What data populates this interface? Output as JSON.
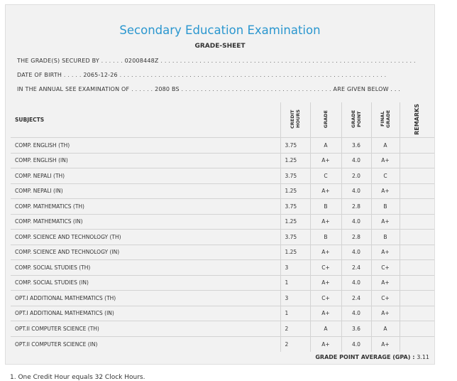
{
  "header": {
    "title": "Secondary Education Examination",
    "subtitle": "GRADE-SHEET"
  },
  "info": {
    "grade_label": "THE GRADE(S) SECURED BY",
    "grade_dots": ". . . . . .",
    "symbol_no": "02008448Z",
    "dob_label": "DATE OF BIRTH",
    "dob_dots": ". . . . .",
    "dob": "2065-12-26",
    "exam_label": "IN THE ANNUAL SEE EXAMINATION OF",
    "exam_dots": ". . . . . .",
    "exam_year": "2080 BS",
    "exam_suffix": "ARE GIVEN BELOW . . ."
  },
  "table": {
    "headers": {
      "subjects": "SUBJECTS",
      "credit": "CREDIT HOURS",
      "grade": "GRADE",
      "grade_point": "GRADE POINT",
      "final_grade": "FINAL GRADE",
      "remarks": "REMARKS"
    },
    "rows": [
      {
        "subject": "COMP. ENGLISH (TH)",
        "credit": "3.75",
        "grade": "A",
        "gp": "3.6",
        "final": "A"
      },
      {
        "subject": "COMP. ENGLISH (IN)",
        "credit": "1.25",
        "grade": "A+",
        "gp": "4.0",
        "final": "A+"
      },
      {
        "subject": "COMP. NEPALI (TH)",
        "credit": "3.75",
        "grade": "C",
        "gp": "2.0",
        "final": "C"
      },
      {
        "subject": "COMP. NEPALI (IN)",
        "credit": "1.25",
        "grade": "A+",
        "gp": "4.0",
        "final": "A+"
      },
      {
        "subject": "COMP. MATHEMATICS (TH)",
        "credit": "3.75",
        "grade": "B",
        "gp": "2.8",
        "final": "B"
      },
      {
        "subject": "COMP. MATHEMATICS (IN)",
        "credit": "1.25",
        "grade": "A+",
        "gp": "4.0",
        "final": "A+"
      },
      {
        "subject": "COMP. SCIENCE AND TECHNOLOGY (TH)",
        "credit": "3.75",
        "grade": "B",
        "gp": "2.8",
        "final": "B"
      },
      {
        "subject": "COMP. SCIENCE AND TECHNOLOGY (IN)",
        "credit": "1.25",
        "grade": "A+",
        "gp": "4.0",
        "final": "A+"
      },
      {
        "subject": "COMP. SOCIAL STUDIES (TH)",
        "credit": "3",
        "grade": "C+",
        "gp": "2.4",
        "final": "C+"
      },
      {
        "subject": "COMP. SOCIAL STUDIES (IN)",
        "credit": "1",
        "grade": "A+",
        "gp": "4.0",
        "final": "A+"
      },
      {
        "subject": "OPT.I ADDITIONAL MATHEMATICS (TH)",
        "credit": "3",
        "grade": "C+",
        "gp": "2.4",
        "final": "C+"
      },
      {
        "subject": "OPT.I ADDITIONAL MATHEMATICS (IN)",
        "credit": "1",
        "grade": "A+",
        "gp": "4.0",
        "final": "A+"
      },
      {
        "subject": "OPT.II COMPUTER SCIENCE (TH)",
        "credit": "2",
        "grade": "A",
        "gp": "3.6",
        "final": "A"
      },
      {
        "subject": "OPT.II COMPUTER SCIENCE (IN)",
        "credit": "2",
        "grade": "A+",
        "gp": "4.0",
        "final": "A+"
      }
    ]
  },
  "summary": {
    "gpa_label": "GRADE POINT AVERAGE (GPA) :",
    "gpa": "3.11"
  },
  "footnote": "1. One Credit Hour equals 32 Clock Hours."
}
